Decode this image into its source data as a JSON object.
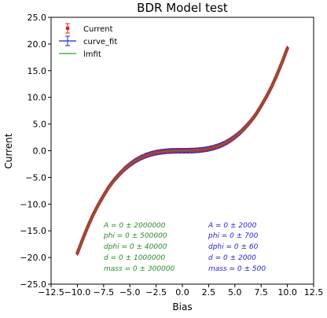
{
  "chart_data": {
    "type": "scatter",
    "title": "BDR Model test",
    "xlabel": "Bias",
    "ylabel": "Current",
    "xlim": [
      -12.5,
      12.5
    ],
    "ylim": [
      -25,
      25
    ],
    "xticks": [
      -12.5,
      -10.0,
      -7.5,
      -5.0,
      -2.5,
      0.0,
      2.5,
      5.0,
      7.5,
      10.0,
      12.5
    ],
    "xtick_labels": [
      "−12.5",
      "−10.0",
      "−7.5",
      "−5.0",
      "−2.5",
      "0.0",
      "2.5",
      "5.0",
      "7.5",
      "10.0",
      "12.5"
    ],
    "yticks": [
      -25,
      -20,
      -15,
      -10,
      -5,
      0,
      5,
      10,
      15,
      20,
      25
    ],
    "ytick_labels": [
      "−25.0",
      "−20.0",
      "−15.0",
      "−10.0",
      "−5.0",
      "0.0",
      "5.0",
      "10.0",
      "15.0",
      "20.0",
      "25.0"
    ],
    "grid": false,
    "legend_position": "top-left",
    "series": [
      {
        "name": "Current",
        "color": "#d62728",
        "marker": "errorbar-point",
        "x": [
          -10,
          -9.5,
          -9,
          -8.5,
          -8,
          -7.5,
          -7,
          -6.5,
          -6,
          -5.5,
          -5,
          -4.5,
          -4,
          -3.5,
          -3,
          -2.5,
          -2,
          -1.5,
          -1,
          -0.5,
          0,
          0.5,
          1,
          1.5,
          2,
          2.5,
          3,
          3.5,
          4,
          4.5,
          5,
          5.5,
          6,
          6.5,
          7,
          7.5,
          8,
          8.5,
          9,
          9.5,
          10
        ],
        "y": [
          -19.2,
          -16.6,
          -14.2,
          -12.0,
          -10.1,
          -8.4,
          -6.8,
          -5.5,
          -4.4,
          -3.4,
          -2.6,
          -1.9,
          -1.35,
          -0.92,
          -0.6,
          -0.36,
          -0.2,
          -0.09,
          -0.03,
          -0.005,
          0,
          0.005,
          0.03,
          0.09,
          0.2,
          0.36,
          0.6,
          0.92,
          1.35,
          1.9,
          2.6,
          3.4,
          4.4,
          5.5,
          6.8,
          8.4,
          10.1,
          12.0,
          14.2,
          16.6,
          19.2
        ]
      },
      {
        "name": "curve_fit",
        "color": "#1f1fd6",
        "marker": "line-errorbar"
      },
      {
        "name": "lmfit",
        "color": "#2ca02c",
        "marker": "line"
      }
    ],
    "annotations": [
      {
        "color": "#2a8a2a",
        "lines": [
          "A = 0 ± 2000000",
          "phi = 0 ± 500000",
          "dphi = 0 ± 40000",
          "d = 0 ± 1000000",
          "mass = 0 ± 300000"
        ]
      },
      {
        "color": "#1f1fd6",
        "lines": [
          "A = 0 ± 2000",
          "phi = 0 ± 700",
          "dphi = 0 ± 60",
          "d = 0 ± 2000",
          "mass = 0 ± 500"
        ]
      }
    ]
  }
}
